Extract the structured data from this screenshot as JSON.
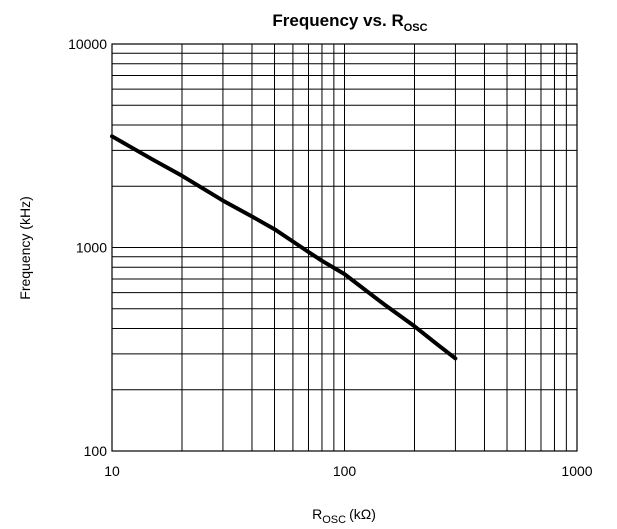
{
  "chart_data": {
    "type": "line",
    "title": "Frequency vs. R",
    "title_subscript": "OSC",
    "xlabel": "R",
    "xlabel_subscript": "OSC",
    "xlabel_unit": "(kΩ)",
    "ylabel": "Frequency (kHz)",
    "x_scale": "log",
    "y_scale": "log",
    "xlim": [
      10,
      1000
    ],
    "ylim": [
      100,
      10000
    ],
    "grid": true,
    "x_ticks": [
      "10",
      "100",
      "1000"
    ],
    "y_ticks": [
      "100",
      "1000",
      "10000"
    ],
    "series": [
      {
        "x": [
          10,
          15,
          20,
          30,
          40,
          50,
          60,
          70,
          80,
          100,
          150,
          200,
          250,
          300
        ],
        "y": [
          3520,
          2700,
          2250,
          1700,
          1420,
          1230,
          1070,
          950,
          860,
          740,
          520,
          410,
          335,
          285
        ]
      }
    ],
    "colors": {
      "line": "#000000",
      "grid": "#000000"
    }
  }
}
